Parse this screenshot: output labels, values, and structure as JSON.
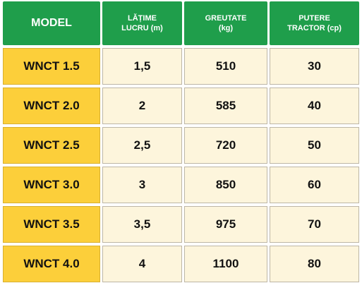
{
  "table": {
    "header": [
      [
        "MODEL"
      ],
      [
        "LĂȚIME",
        "LUCRU (m)"
      ],
      [
        "GREUTATE",
        "(kg)"
      ],
      [
        "PUTERE",
        "TRACTOR (cp)"
      ]
    ],
    "rows": [
      [
        "WNCT 1.5",
        "1,5",
        "510",
        "30"
      ],
      [
        "WNCT 2.0",
        "2",
        "585",
        "40"
      ],
      [
        "WNCT 2.5",
        "2,5",
        "720",
        "50"
      ],
      [
        "WNCT 3.0",
        "3",
        "850",
        "60"
      ],
      [
        "WNCT 3.5",
        "3,5",
        "975",
        "70"
      ],
      [
        "WNCT 4.0",
        "4",
        "1100",
        "80"
      ]
    ]
  }
}
